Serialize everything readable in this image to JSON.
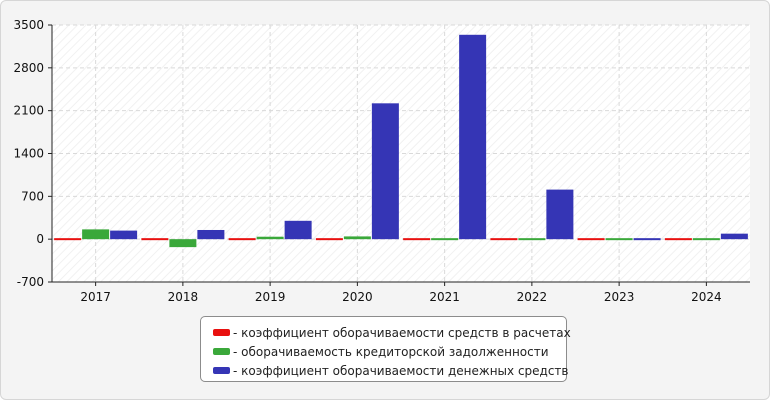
{
  "chart_data": {
    "type": "bar",
    "categories": [
      "2017",
      "2018",
      "2019",
      "2020",
      "2021",
      "2022",
      "2023",
      "2024"
    ],
    "ylim": [
      -700,
      3500
    ],
    "yticks": [
      "3500",
      "2800",
      "2100",
      "1400",
      "700",
      "0",
      "-700"
    ],
    "grid": true,
    "legend_position": "bottom",
    "series": [
      {
        "name": "- коэффициент оборачиваемости средств в расчетах",
        "color": "#e8100f",
        "values": [
          8,
          10,
          8,
          9,
          10,
          10,
          10,
          10
        ]
      },
      {
        "name": "- оборачиваемость кредиторской задолженности",
        "color": "#3aa83a",
        "values": [
          160,
          -130,
          40,
          45,
          20,
          25,
          20,
          20
        ]
      },
      {
        "name": "- коэффициент оборачиваемости денежных средств",
        "color": "#3535b5",
        "values": [
          140,
          150,
          300,
          2220,
          3340,
          810,
          10,
          90
        ]
      }
    ]
  }
}
